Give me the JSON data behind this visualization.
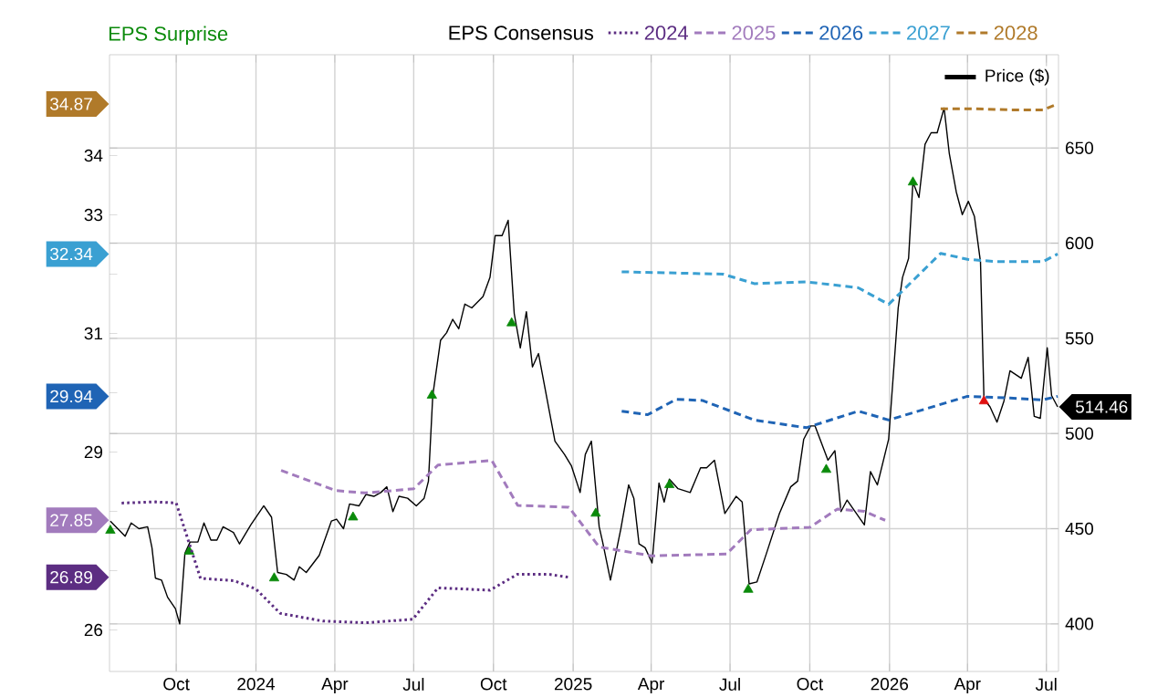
{
  "chart_data": {
    "type": "line",
    "legend_title": "EPS Consensus",
    "xlim": [
      "2023-07-16",
      "2026-07-15"
    ],
    "xticks": [
      {
        "value": "2023-10-01",
        "label": "Oct"
      },
      {
        "value": "2024-01-01",
        "label": "2024"
      },
      {
        "value": "2024-04-01",
        "label": "Apr"
      },
      {
        "value": "2024-07-01",
        "label": "Jul"
      },
      {
        "value": "2024-10-01",
        "label": "Oct"
      },
      {
        "value": "2025-01-01",
        "label": "2025"
      },
      {
        "value": "2025-04-01",
        "label": "Apr"
      },
      {
        "value": "2025-07-01",
        "label": "Jul"
      },
      {
        "value": "2025-10-01",
        "label": "Oct"
      },
      {
        "value": "2026-01-01",
        "label": "2026"
      },
      {
        "value": "2026-04-01",
        "label": "Apr"
      },
      {
        "value": "2026-07-01",
        "label": "Jul"
      }
    ],
    "ylim": [
      25.3,
      35.7
    ],
    "yticks": [
      26,
      {
        "value": 27,
        "label": null
      },
      {
        "value": 28,
        "label": null
      },
      29,
      {
        "value": 30,
        "label": null
      },
      31,
      {
        "value": 32,
        "label": null
      },
      33,
      34
    ],
    "y2lim": [
      375,
      699
    ],
    "y2ticks": [
      400,
      450,
      500,
      550,
      600,
      650
    ],
    "grid": true,
    "legend": "top",
    "annotations": [
      "26.89",
      "27.85",
      "29.94",
      "32.34",
      "34.87",
      "514.46"
    ],
    "series": [
      {
        "name": "2024",
        "color": "#5c2d82",
        "line_style": "dotted",
        "x": [
          "2023-07-30",
          "2023-09-07",
          "2023-10-01",
          "2023-10-29",
          "2023-12-07",
          "2024-01-01",
          "2024-01-29",
          "2024-03-18",
          "2024-05-06",
          "2024-06-30",
          "2024-07-29",
          "2024-09-27",
          "2024-10-29",
          "2024-12-03",
          "2024-12-26"
        ],
        "values": [
          28.14,
          28.16,
          28.14,
          26.87,
          26.83,
          26.69,
          26.28,
          26.15,
          26.12,
          26.18,
          26.71,
          26.67,
          26.94,
          26.94,
          26.89
        ]
      },
      {
        "name": "2025",
        "color": "#a27bbd",
        "line_style": "dashed",
        "x": [
          "2024-01-30",
          "2024-04-02",
          "2024-05-06",
          "2024-07-01",
          "2024-07-29",
          "2024-09-29",
          "2024-10-29",
          "2024-12-27",
          "2025-01-31",
          "2025-04-01",
          "2025-06-27",
          "2025-07-25",
          "2025-10-01",
          "2025-11-02",
          "2025-12-03",
          "2025-12-27"
        ],
        "values": [
          28.69,
          28.35,
          28.31,
          28.38,
          28.78,
          28.86,
          28.1,
          28.07,
          27.4,
          27.25,
          27.28,
          27.69,
          27.73,
          28.04,
          28.0,
          27.85
        ]
      },
      {
        "name": "2026",
        "color": "#1f64b5",
        "line_style": "dashed",
        "x": [
          "2025-02-26",
          "2025-03-28",
          "2025-04-30",
          "2025-05-30",
          "2025-07-29",
          "2025-09-27",
          "2025-11-26",
          "2025-12-31",
          "2026-04-01",
          "2026-05-20",
          "2026-06-27",
          "2026-07-14"
        ],
        "values": [
          29.69,
          29.63,
          29.89,
          29.87,
          29.54,
          29.41,
          29.69,
          29.54,
          29.94,
          29.91,
          29.88,
          29.94
        ]
      },
      {
        "name": "2027",
        "color": "#3aa0d2",
        "line_style": "dashed",
        "x": [
          "2025-02-26",
          "2025-06-23",
          "2025-07-29",
          "2025-09-27",
          "2025-11-26",
          "2025-12-31",
          "2026-03-01",
          "2026-04-01",
          "2026-05-05",
          "2026-06-27",
          "2026-07-14"
        ],
        "values": [
          32.04,
          32.0,
          31.84,
          31.87,
          31.77,
          31.49,
          32.35,
          32.25,
          32.21,
          32.21,
          32.34
        ]
      },
      {
        "name": "2028",
        "color": "#b07a2a",
        "line_style": "dashed",
        "x": [
          "2026-03-01",
          "2026-04-08",
          "2026-05-20",
          "2026-06-27",
          "2026-07-14"
        ],
        "values": [
          34.79,
          34.79,
          34.77,
          34.77,
          34.87
        ]
      },
      {
        "name": "Price ($)",
        "axis": "y2",
        "color": "#000000",
        "line_style": "solid",
        "x": [
          "2023-07-17",
          "2023-08-03",
          "2023-08-10",
          "2023-08-19",
          "2023-08-29",
          "2023-09-03",
          "2023-09-07",
          "2023-09-14",
          "2023-09-21",
          "2023-09-30",
          "2023-10-05",
          "2023-10-11",
          "2023-10-17",
          "2023-10-26",
          "2023-11-02",
          "2023-11-10",
          "2023-11-17",
          "2023-11-24",
          "2023-12-06",
          "2023-12-13",
          "2023-12-26",
          "2024-01-10",
          "2024-01-19",
          "2024-01-26",
          "2024-02-05",
          "2024-02-14",
          "2024-02-20",
          "2024-02-28",
          "2024-03-14",
          "2024-03-28",
          "2024-04-03",
          "2024-04-11",
          "2024-04-18",
          "2024-04-29",
          "2024-05-07",
          "2024-05-16",
          "2024-05-24",
          "2024-05-31",
          "2024-06-07",
          "2024-06-14",
          "2024-06-24",
          "2024-07-04",
          "2024-07-13",
          "2024-07-18",
          "2024-07-23",
          "2024-08-01",
          "2024-08-08",
          "2024-08-15",
          "2024-08-22",
          "2024-08-29",
          "2024-09-06",
          "2024-09-19",
          "2024-09-27",
          "2024-10-03",
          "2024-10-11",
          "2024-10-18",
          "2024-10-25",
          "2024-11-01",
          "2024-11-08",
          "2024-11-15",
          "2024-11-22",
          "2024-12-11",
          "2024-12-22",
          "2024-12-30",
          "2025-01-09",
          "2025-01-15",
          "2025-01-22",
          "2025-01-31",
          "2025-02-04",
          "2025-02-13",
          "2025-02-25",
          "2025-03-06",
          "2025-03-12",
          "2025-03-18",
          "2025-03-25",
          "2025-04-02",
          "2025-04-10",
          "2025-04-16",
          "2025-04-22",
          "2025-05-02",
          "2025-05-16",
          "2025-05-28",
          "2025-06-04",
          "2025-06-13",
          "2025-06-25",
          "2025-07-08",
          "2025-07-15",
          "2025-07-23",
          "2025-08-01",
          "2025-08-12",
          "2025-08-27",
          "2025-09-09",
          "2025-09-17",
          "2025-09-24",
          "2025-10-02",
          "2025-10-07",
          "2025-10-22",
          "2025-10-30",
          "2025-11-06",
          "2025-11-13",
          "2025-12-03",
          "2025-12-10",
          "2025-12-18",
          "2025-12-31",
          "2026-01-11",
          "2026-01-16",
          "2026-01-23",
          "2026-01-28",
          "2026-02-04",
          "2026-02-11",
          "2026-02-18",
          "2026-02-25",
          "2026-03-05",
          "2026-03-11",
          "2026-03-19",
          "2026-03-26",
          "2026-04-02",
          "2026-04-09",
          "2026-04-16",
          "2026-04-20",
          "2026-04-27",
          "2026-05-05",
          "2026-05-13",
          "2026-05-20",
          "2026-06-02",
          "2026-06-10",
          "2026-06-17",
          "2026-06-24",
          "2026-07-02",
          "2026-07-07",
          "2026-07-14"
        ],
        "values": [
          454,
          446,
          453,
          450,
          451,
          440,
          424,
          423,
          414,
          408,
          400,
          437,
          443,
          443,
          453,
          444,
          444,
          451,
          448,
          442,
          452,
          462,
          456,
          427,
          426,
          423,
          430,
          427,
          436,
          454,
          455,
          450,
          463,
          462,
          468,
          467,
          469,
          472,
          459,
          467,
          466,
          462,
          466,
          475,
          520,
          549,
          553,
          560,
          555,
          568,
          566,
          572,
          582,
          604,
          604,
          612,
          563,
          545,
          564,
          535,
          542,
          496,
          489,
          483,
          469,
          489,
          496,
          451,
          443,
          423,
          450,
          473,
          466,
          442,
          440,
          432,
          474,
          464,
          476,
          471,
          469,
          482,
          482,
          486,
          458,
          467,
          464,
          421,
          422,
          437,
          458,
          472,
          475,
          497,
          504,
          504,
          486,
          491,
          459,
          465,
          452,
          480,
          473,
          497,
          566,
          582,
          592,
          632,
          624,
          652,
          658,
          658,
          671,
          647,
          627,
          615,
          622,
          614,
          590,
          518,
          514,
          506,
          517,
          533,
          529,
          540,
          509,
          508,
          545,
          520,
          514
        ]
      },
      {
        "name": "EPS Surprise",
        "type": "scatter",
        "axis": "y2",
        "color": "#0a8a0a",
        "marker": "triangle",
        "x": [
          "2023-07-17",
          "2023-10-16",
          "2024-01-22",
          "2024-04-22",
          "2024-07-22",
          "2024-10-22",
          "2025-01-27",
          "2025-04-22",
          "2025-07-22",
          "2025-10-20",
          "2026-01-28"
        ],
        "values": [
          449,
          438,
          424,
          456,
          520,
          558,
          458,
          473,
          418,
          481,
          632
        ]
      },
      {
        "type": "scatter",
        "axis": "y2",
        "color": "#e01010",
        "marker": "triangle",
        "x": [
          "2026-04-20"
        ],
        "values": [
          517
        ]
      }
    ]
  }
}
